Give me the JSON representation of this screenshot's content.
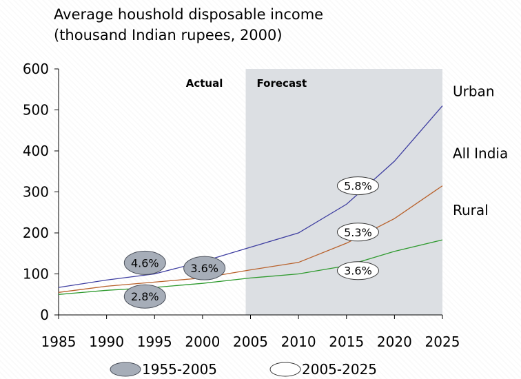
{
  "title": {
    "line1": "Average houshold disposable income",
    "line2": "(thousand Indian rupees, 2000)"
  },
  "colors": {
    "urban": "#3d3da0",
    "all_india": "#b8602a",
    "rural": "#2e9a2e",
    "forecast_shade": "#dcdfe3",
    "bubble_historic": "#a6adb8",
    "bubble_forecast": "#ffffff"
  },
  "chart_data": {
    "type": "line",
    "x": [
      1985,
      1990,
      1995,
      2000,
      2005,
      2010,
      2015,
      2020,
      2025
    ],
    "xlim": [
      1985,
      2025
    ],
    "ylim": [
      0,
      600
    ],
    "y_ticks": [
      0,
      100,
      200,
      300,
      400,
      500,
      600
    ],
    "x_ticks": [
      1985,
      1990,
      1995,
      2000,
      2005,
      2010,
      2015,
      2020,
      2025
    ],
    "series": [
      {
        "name": "Urban",
        "key": "urban",
        "values": [
          67,
          85,
          100,
          130,
          165,
          200,
          270,
          375,
          510
        ]
      },
      {
        "name": "All India",
        "key": "all_india",
        "values": [
          55,
          70,
          80,
          90,
          110,
          128,
          175,
          235,
          315
        ]
      },
      {
        "name": "Rural",
        "key": "rural",
        "values": [
          50,
          60,
          67,
          77,
          90,
          100,
          120,
          155,
          183
        ]
      }
    ],
    "regions": [
      {
        "label": "Actual",
        "from": 1985,
        "to": 2004.5,
        "shaded": false
      },
      {
        "label": "Forecast",
        "from": 2004.5,
        "to": 2025,
        "shaded": true
      }
    ],
    "annotations": [
      {
        "text": "4.6%",
        "x": 1994,
        "y": 127,
        "period": "1955-2005"
      },
      {
        "text": "3.6%",
        "x": 2000.2,
        "y": 114,
        "period": "1955-2005"
      },
      {
        "text": "2.8%",
        "x": 1994,
        "y": 45,
        "period": "1955-2005"
      },
      {
        "text": "5.8%",
        "x": 2016.2,
        "y": 315,
        "period": "2005-2025"
      },
      {
        "text": "5.3%",
        "x": 2016.2,
        "y": 202,
        "period": "2005-2025"
      },
      {
        "text": "3.6%",
        "x": 2016.2,
        "y": 108,
        "period": "2005-2025"
      }
    ],
    "legend": {
      "placement": "bottom",
      "items": [
        {
          "label": "1955-2005",
          "style": "filled"
        },
        {
          "label": "2005-2025",
          "style": "outline"
        }
      ]
    }
  }
}
